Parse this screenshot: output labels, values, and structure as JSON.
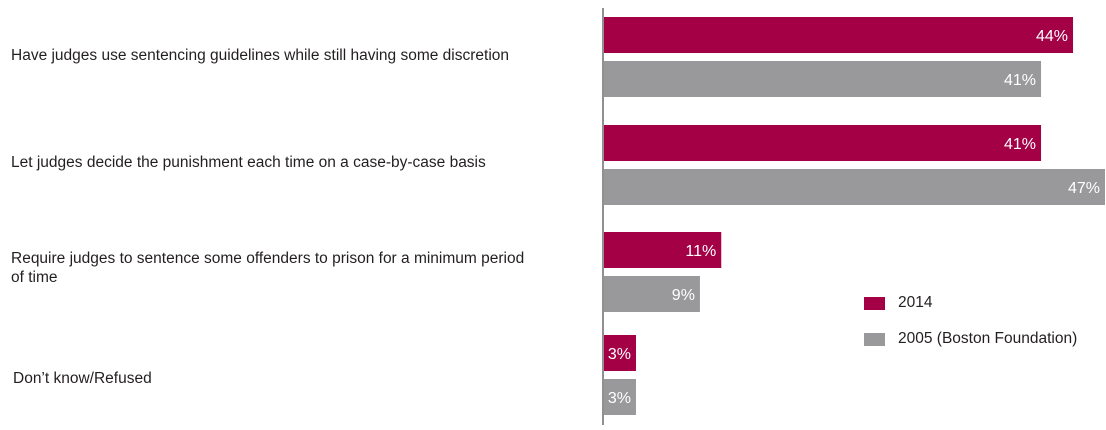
{
  "chart_data": {
    "type": "bar",
    "orientation": "horizontal",
    "categories": [
      "Have judges use sentencing guidelines while still having some discretion",
      "Let judges decide the punishment each time on a case-by-case basis",
      "Require judges to sentence some offenders to prison for a minimum period of time",
      "Don’t know/Refused"
    ],
    "series": [
      {
        "name": "2014",
        "values": [
          44,
          41,
          11,
          3
        ],
        "labels": [
          "44%",
          "41%",
          "11%",
          "3%"
        ],
        "color": "#a30046"
      },
      {
        "name": "2005 (Boston Foundation)",
        "values": [
          41,
          47,
          9,
          3
        ],
        "labels": [
          "41%",
          "47%",
          "9%",
          "3%"
        ],
        "color": "#99999b"
      }
    ],
    "xlim": [
      0,
      47
    ],
    "grid": false,
    "legend_position": "right"
  }
}
